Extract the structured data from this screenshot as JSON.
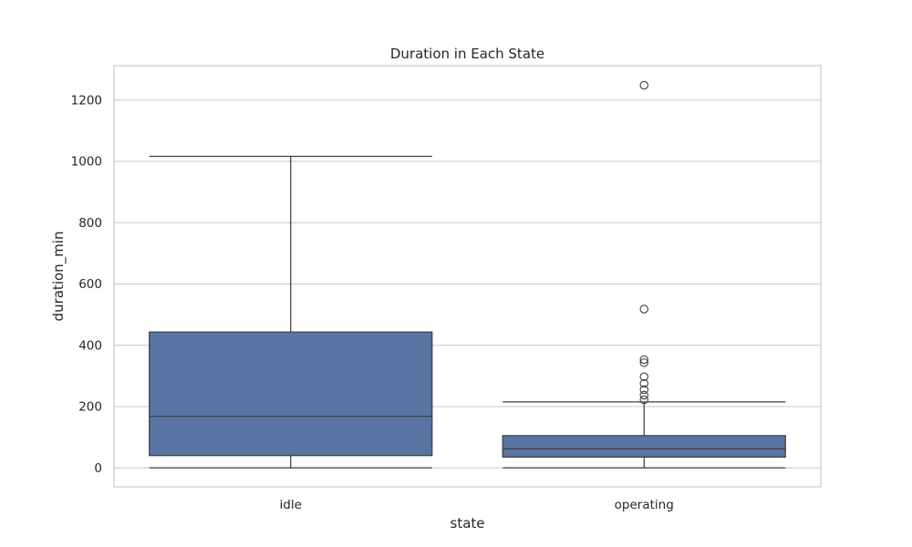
{
  "chart_data": {
    "type": "box",
    "title": "Duration in Each State",
    "xlabel": "state",
    "ylabel": "duration_min",
    "ylim": [
      -62,
      1312
    ],
    "yticks": [
      0,
      200,
      400,
      600,
      800,
      1000,
      1200
    ],
    "grid": true,
    "categories": [
      "idle",
      "operating"
    ],
    "boxes": [
      {
        "category": "idle",
        "whisker_low": 0,
        "q1": 40,
        "median": 168,
        "q3": 443,
        "whisker_high": 1016,
        "outliers": []
      },
      {
        "category": "operating",
        "whisker_low": 0,
        "q1": 35,
        "median": 62,
        "q3": 105,
        "whisker_high": 215,
        "outliers": [
          222,
          237,
          255,
          275,
          297,
          343,
          353,
          518,
          1248
        ]
      }
    ],
    "colors": {
      "box_fill": "#5875a4",
      "line": "#3f3f3f",
      "grid": "#cccccc",
      "frame": "#cccccc"
    }
  }
}
